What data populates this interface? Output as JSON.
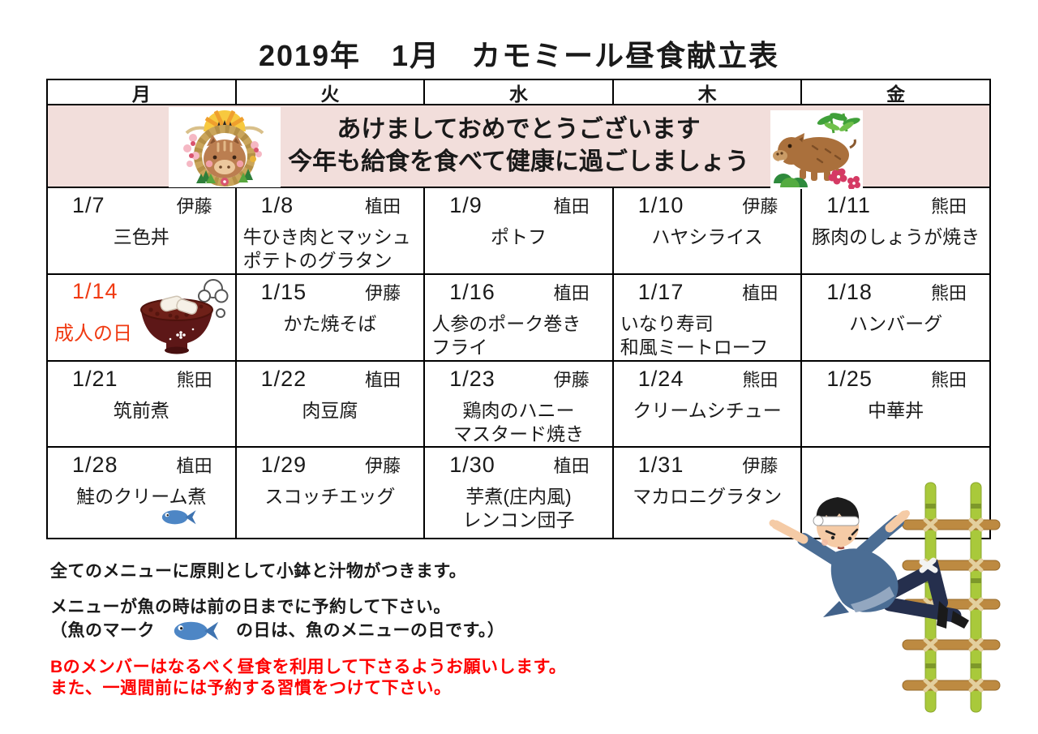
{
  "title": "2019年　1月　カモミール昼食献立表",
  "weekdays": [
    "月",
    "火",
    "水",
    "木",
    "金"
  ],
  "greeting": {
    "line1": "あけましておめでとうございます",
    "line2": "今年も給食を食べて健康に過ごしましょう"
  },
  "calendar": {
    "weeks": [
      {
        "days": [
          {
            "date": "1/7",
            "staff": "伊藤",
            "menu": [
              "三色丼"
            ],
            "align": "center"
          },
          {
            "date": "1/8",
            "staff": "植田",
            "menu": [
              "牛ひき肉とマッシュ",
              "ポテトのグラタン"
            ],
            "align": "left"
          },
          {
            "date": "1/9",
            "staff": "植田",
            "menu": [
              "ポトフ"
            ],
            "align": "center"
          },
          {
            "date": "1/10",
            "staff": "伊藤",
            "menu": [
              "ハヤシライス"
            ],
            "align": "center"
          },
          {
            "date": "1/11",
            "staff": "熊田",
            "menu": [
              "豚肉のしょうが焼き"
            ],
            "align": "center"
          }
        ]
      },
      {
        "days": [
          {
            "date": "1/14",
            "holiday": "成人の日",
            "red": true,
            "menu": [],
            "illustration": "oshiruko-bowl"
          },
          {
            "date": "1/15",
            "staff": "伊藤",
            "menu": [
              "かた焼そば"
            ],
            "align": "center"
          },
          {
            "date": "1/16",
            "staff": "植田",
            "menu": [
              "人参のポーク巻き",
              "フライ"
            ],
            "align": "left"
          },
          {
            "date": "1/17",
            "staff": "植田",
            "menu": [
              "いなり寿司",
              "和風ミートローフ"
            ],
            "align": "left"
          },
          {
            "date": "1/18",
            "staff": "熊田",
            "menu": [
              "ハンバーグ"
            ],
            "align": "center"
          }
        ]
      },
      {
        "days": [
          {
            "date": "1/21",
            "staff": "熊田",
            "menu": [
              "筑前煮"
            ],
            "align": "center"
          },
          {
            "date": "1/22",
            "staff": "植田",
            "menu": [
              "肉豆腐"
            ],
            "align": "center"
          },
          {
            "date": "1/23",
            "staff": "伊藤",
            "menu": [
              "鶏肉のハニー",
              "マスタード焼き"
            ],
            "align": "center"
          },
          {
            "date": "1/24",
            "staff": "熊田",
            "menu": [
              "クリームシチュー"
            ],
            "align": "center"
          },
          {
            "date": "1/25",
            "staff": "熊田",
            "menu": [
              "中華丼"
            ],
            "align": "center"
          }
        ]
      },
      {
        "days": [
          {
            "date": "1/28",
            "staff": "植田",
            "menu": [
              "鮭のクリーム煮"
            ],
            "align": "center",
            "fish": true
          },
          {
            "date": "1/29",
            "staff": "伊藤",
            "menu": [
              "スコッチエッグ"
            ],
            "align": "center"
          },
          {
            "date": "1/30",
            "staff": "植田",
            "menu": [
              "芋煮(庄内風)",
              "レンコン団子"
            ],
            "align": "center"
          },
          {
            "date": "1/31",
            "staff": "伊藤",
            "menu": [
              "マカロニグラタン"
            ],
            "align": "center"
          },
          {
            "empty": true
          }
        ]
      }
    ]
  },
  "notes": {
    "note1": "全てのメニューに原則として小鉢と汁物がつきます。",
    "note2_line1": "メニューが魚の時は前の日までに予約して下さい。",
    "note2_line2_before": "（魚のマーク",
    "note2_line2_after": "の日は、魚のメニューの日です。）",
    "warning_line1": "Bのメンバーはなるべく昼食を利用して下さるようお願いします。",
    "warning_line2": "また、一週間前には予約する習慣をつけて下さい。"
  },
  "icons": {
    "left_illustration": "boar-new-year-wreath",
    "right_illustration": "boar-with-bamboo-and-plum",
    "holiday_illustration": "oshiruko-bowl",
    "fish_icon": "blue-fish",
    "bottom_illustration": "firefighter-ladder-acrobat"
  },
  "colors": {
    "holiday_red": "#f03a12",
    "greeting_bg": "#f2dedb",
    "warning_red": "#fe0000",
    "fish_blue": "#4d86c5"
  }
}
